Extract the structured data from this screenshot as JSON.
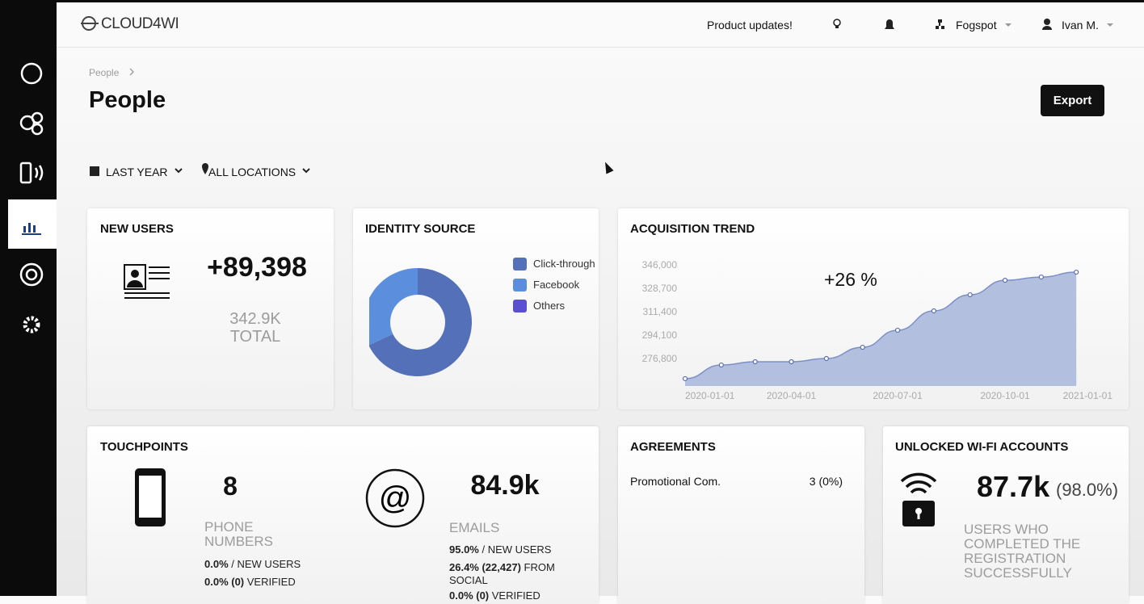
{
  "header": {
    "logo": "CLOUD4WI",
    "product_updates": "Product updates!",
    "org": "Fogspot",
    "user": "Ivan M."
  },
  "breadcrumb": "People",
  "title": "People",
  "export_button": "Export",
  "filters": {
    "period": "LAST YEAR",
    "locations": "ALL LOCATIONS"
  },
  "new_users": {
    "title": "NEW USERS",
    "count": "+89,398",
    "total": "342.9K",
    "total_label": "TOTAL"
  },
  "touchpoints": {
    "title": "TOUCHPOINTS",
    "phone": {
      "count": "8",
      "label": "PHONE NUMBERS",
      "stats": [
        {
          "bold": "0.0%",
          "rest": "/ NEW USERS"
        },
        {
          "bold": "0.0% (0)",
          "rest": "VERIFIED"
        }
      ]
    },
    "email": {
      "count": "84.9k",
      "label": "EMAILS",
      "stats": [
        {
          "bold": "95.0%",
          "rest": "/ NEW USERS"
        },
        {
          "bold": "26.4% (22,427)",
          "rest": "FROM SOCIAL"
        },
        {
          "bold": "0.0% (0)",
          "rest": "VERIFIED"
        }
      ]
    }
  },
  "agreements": {
    "title": "AGREEMENTS",
    "rows": [
      {
        "name": "Promotional Com.",
        "value": "3 (0%)"
      }
    ]
  },
  "unlocked": {
    "title": "UNLOCKED WI-FI ACCOUNTS",
    "count": "87.7k",
    "percent": "(98.0%)",
    "description": "USERS WHO COMPLETED THE REGISTRATION SUCCESSFULLY"
  },
  "chart_data": [
    {
      "type": "pie",
      "title": "IDENTITY SOURCE",
      "donut": true,
      "categories": [
        "Click-through",
        "Facebook",
        "Others"
      ],
      "values": [
        68,
        32,
        0
      ],
      "colors": [
        "#5470b8",
        "#5b8fde",
        "#5a4fd0"
      ]
    },
    {
      "type": "area",
      "title": "ACQUISITION TREND",
      "annotation": "+26 %",
      "x": [
        "2020-01-01",
        "2020-02-01",
        "2020-03-01",
        "2020-04-01",
        "2020-05-01",
        "2020-06-01",
        "2020-07-01",
        "2020-08-01",
        "2020-09-01",
        "2020-10-01",
        "2020-11-01",
        "2020-12-01"
      ],
      "values": [
        261900,
        272000,
        274400,
        274400,
        276800,
        285100,
        297700,
        312000,
        323900,
        334600,
        337000,
        340600
      ],
      "color": "#b3bfdf",
      "line_color": "#7d90c6",
      "xlim": [
        "2020-01-01",
        "2021-01-01"
      ],
      "xticks": [
        "2020-01-01",
        "2020-04-01",
        "2020-07-01",
        "2020-10-01",
        "2021-01-01"
      ],
      "ylim": [
        256500,
        346000
      ],
      "yticks": [
        {
          "value": 276800,
          "label": "276,800"
        },
        {
          "value": 294100,
          "label": "294,100"
        },
        {
          "value": 311400,
          "label": "311,400"
        },
        {
          "value": 328700,
          "label": "328,700"
        },
        {
          "value": 346000,
          "label": "346,000"
        }
      ],
      "grid": false
    }
  ]
}
